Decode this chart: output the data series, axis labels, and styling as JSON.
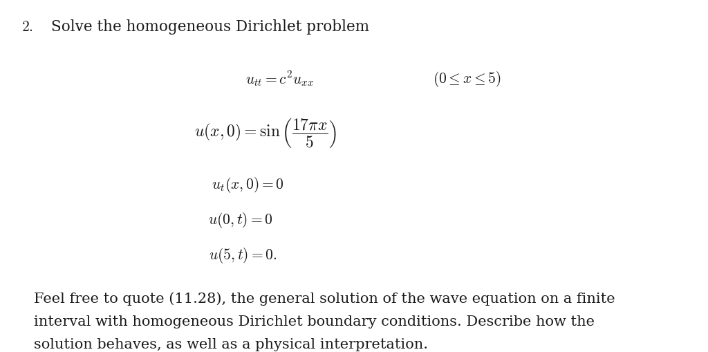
{
  "background_color": "#ffffff",
  "text_color": "#1a1a1a",
  "number_label": "\\textbf{2.}",
  "title_text": "Solve the homogeneous Dirichlet problem",
  "eq1": "$u_{tt} = c^2u_{xx}$",
  "eq1_domain": "$(0 \\leq x \\leq 5)$",
  "eq2": "$u(x,0) = \\sin\\left(\\dfrac{17\\pi x}{5}\\right)$",
  "eq3": "$u_t(x,0) = 0$",
  "eq4": "$u(0,t) = 0$",
  "eq5": "$u(5,t) = 0.$",
  "para1": "Feel free to quote (11.28), the general solution of the wave equation on a finite",
  "para2": "interval with homogeneous Dirichlet boundary conditions. Describe how the",
  "para3": "solution behaves, as well as a physical interpretation.",
  "title_fontsize": 15.5,
  "eq_fontsize": 15.5,
  "para_fontsize": 15,
  "num_fontsize": 15.5,
  "fig_width": 10.24,
  "fig_height": 5.09,
  "dpi": 100
}
